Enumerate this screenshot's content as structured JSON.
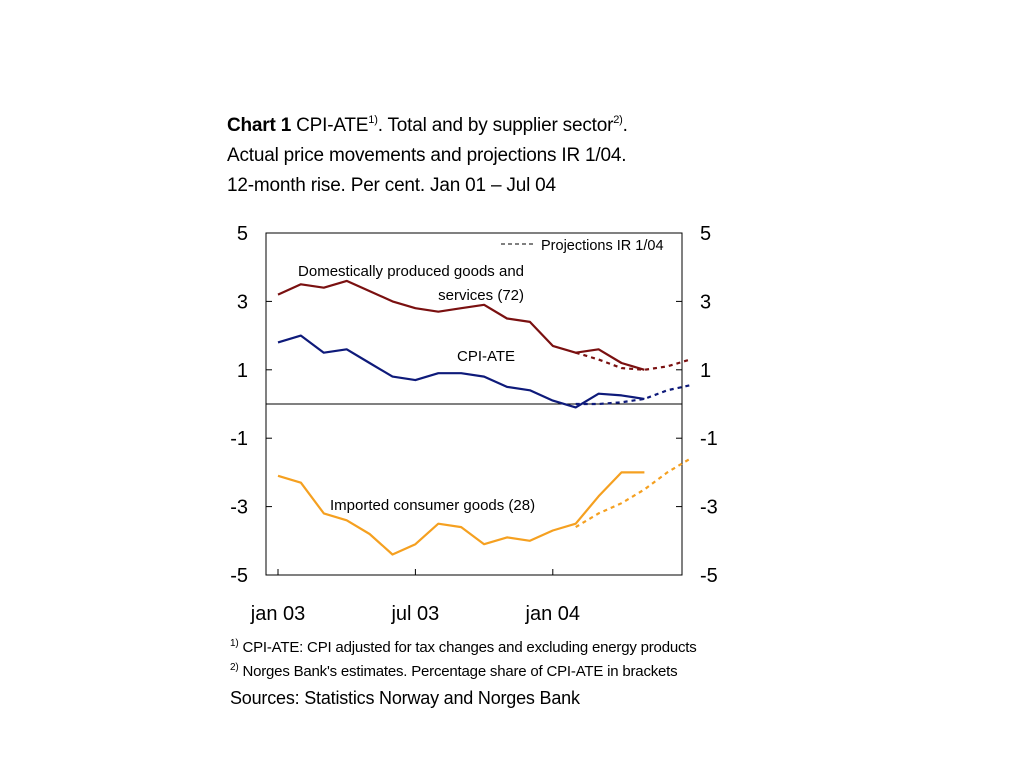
{
  "title": {
    "bold": "Chart 1",
    "l1_a": " CPI-ATE",
    "sup1": "1)",
    "l1_b": ". Total and by supplier sector",
    "sup2": "2)",
    "l1_c": ".",
    "line2": "Actual price movements and projections IR 1/04.",
    "line3": "12-month rise. Per cent. Jan 01 – Jul 04"
  },
  "notes": {
    "n1_mark": "1)",
    "n1_text": " CPI-ATE: CPI adjusted for tax changes and excluding energy products",
    "n2_mark": "2)",
    "n2_text": " Norges Bank's estimates. Percentage share of CPI-ATE in brackets",
    "sources": "Sources: Statistics Norway and Norges Bank"
  },
  "chart_data": {
    "type": "line",
    "ylim": [
      -5,
      5
    ],
    "yticks": [
      5,
      3,
      1,
      -1,
      -3,
      -5
    ],
    "ytick_labels": [
      "5",
      "3",
      "1",
      "-1",
      "-3",
      "-5"
    ],
    "x_range": [
      0,
      18
    ],
    "xticks": [
      {
        "label": "jan 03",
        "pos": 0
      },
      {
        "label": "jul 03",
        "pos": 6
      },
      {
        "label": "jan 04",
        "pos": 12
      }
    ],
    "zero_line": true,
    "grid": false,
    "legend": {
      "label": "Projections IR 1/04",
      "style": "dashed",
      "position": "top-right"
    },
    "series": [
      {
        "name": "Domestically produced goods and services  (72)",
        "color": "#7a1010",
        "actual": [
          [
            0,
            3.2
          ],
          [
            1,
            3.5
          ],
          [
            2,
            3.4
          ],
          [
            3,
            3.6
          ],
          [
            4,
            3.3
          ],
          [
            5,
            3.0
          ],
          [
            6,
            2.8
          ],
          [
            7,
            2.7
          ],
          [
            8,
            2.8
          ],
          [
            9,
            2.9
          ],
          [
            10,
            2.5
          ],
          [
            11,
            2.4
          ],
          [
            12,
            1.7
          ],
          [
            13,
            1.5
          ],
          [
            14,
            1.6
          ],
          [
            15,
            1.2
          ],
          [
            16,
            1.0
          ]
        ],
        "projection": [
          [
            13,
            1.5
          ],
          [
            14,
            1.3
          ],
          [
            15,
            1.05
          ],
          [
            16,
            1.0
          ],
          [
            17,
            1.1
          ],
          [
            18,
            1.3
          ]
        ]
      },
      {
        "name": "CPI-ATE",
        "color": "#0e1a7a",
        "actual": [
          [
            0,
            1.8
          ],
          [
            1,
            2.0
          ],
          [
            2,
            1.5
          ],
          [
            3,
            1.6
          ],
          [
            4,
            1.2
          ],
          [
            5,
            0.8
          ],
          [
            6,
            0.7
          ],
          [
            7,
            0.9
          ],
          [
            8,
            0.9
          ],
          [
            9,
            0.8
          ],
          [
            10,
            0.5
          ],
          [
            11,
            0.4
          ],
          [
            12,
            0.1
          ],
          [
            13,
            -0.1
          ],
          [
            14,
            0.3
          ],
          [
            15,
            0.25
          ],
          [
            16,
            0.15
          ]
        ],
        "projection": [
          [
            13,
            0.0
          ],
          [
            14,
            0.0
          ],
          [
            15,
            0.05
          ],
          [
            16,
            0.15
          ],
          [
            17,
            0.4
          ],
          [
            18,
            0.55
          ]
        ]
      },
      {
        "name": "Imported consumer goods (28)",
        "color": "#f5a020",
        "actual": [
          [
            0,
            -2.1
          ],
          [
            1,
            -2.3
          ],
          [
            2,
            -3.2
          ],
          [
            3,
            -3.4
          ],
          [
            4,
            -3.8
          ],
          [
            5,
            -4.4
          ],
          [
            6,
            -4.1
          ],
          [
            7,
            -3.5
          ],
          [
            8,
            -3.6
          ],
          [
            9,
            -4.1
          ],
          [
            10,
            -3.9
          ],
          [
            11,
            -4.0
          ],
          [
            12,
            -3.7
          ],
          [
            13,
            -3.5
          ],
          [
            14,
            -2.7
          ],
          [
            15,
            -2.0
          ],
          [
            16,
            -2.0
          ]
        ],
        "projection": [
          [
            13,
            -3.6
          ],
          [
            14,
            -3.2
          ],
          [
            15,
            -2.9
          ],
          [
            16,
            -2.5
          ],
          [
            17,
            -2.0
          ],
          [
            18,
            -1.6
          ]
        ]
      }
    ],
    "annotations": [
      {
        "line1": "Domestically produced goods and",
        "line2": "services  (72)"
      },
      {
        "line1": "CPI-ATE"
      },
      {
        "line1": "Imported consumer goods (28)"
      }
    ]
  }
}
